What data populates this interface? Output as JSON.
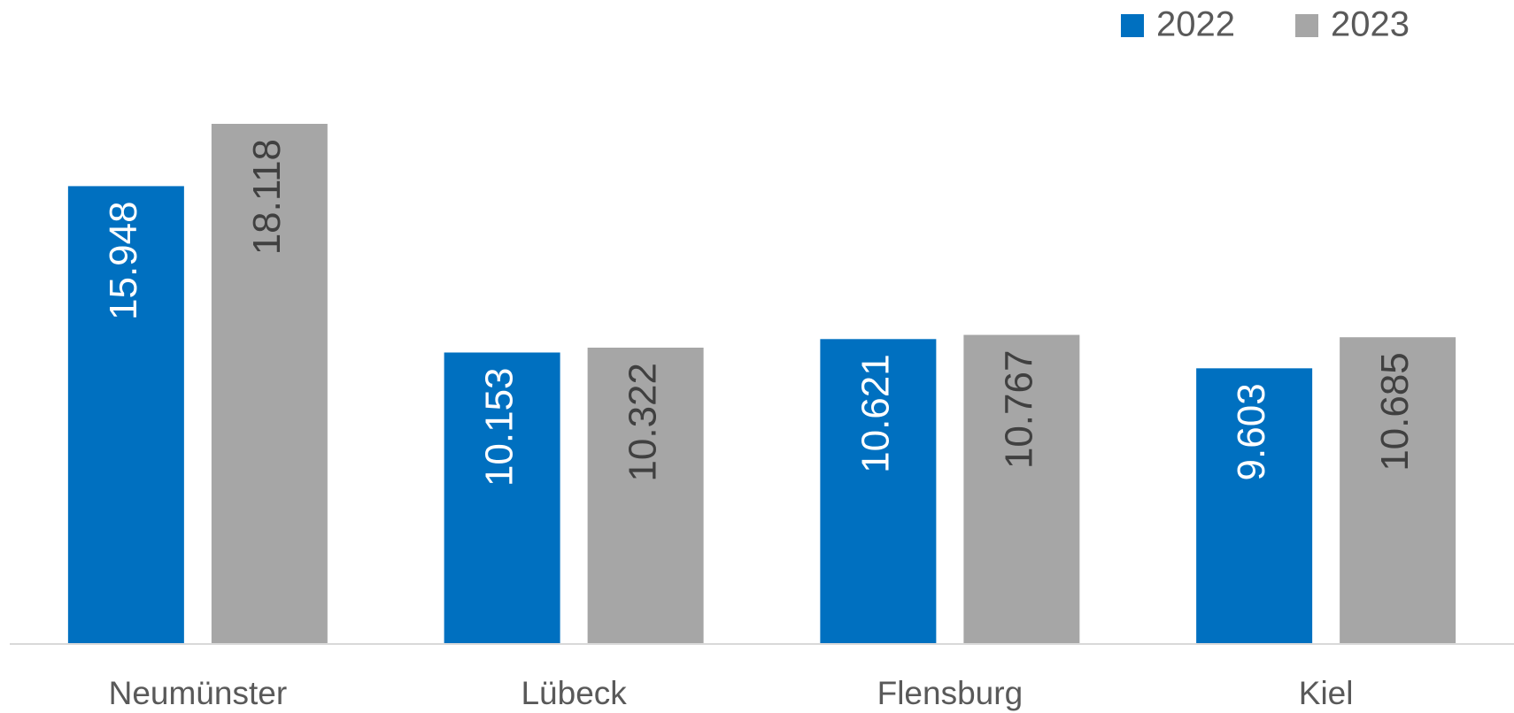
{
  "chart_data": {
    "type": "bar",
    "categories": [
      "Neumünster",
      "Lübeck",
      "Flensburg",
      "Kiel"
    ],
    "series": [
      {
        "name": "2022",
        "color": "#0070c0",
        "values": [
          15948,
          10153,
          10621,
          9603
        ],
        "value_labels": [
          "15.948",
          "10.153",
          "10.621",
          "9.603"
        ]
      },
      {
        "name": "2023",
        "color": "#a6a6a6",
        "values": [
          18118,
          10322,
          10767,
          10685
        ],
        "value_labels": [
          "18.118",
          "10.322",
          "10.767",
          "10.685"
        ]
      }
    ],
    "ylim": [
      0,
      22000
    ],
    "legend": "top-right"
  }
}
